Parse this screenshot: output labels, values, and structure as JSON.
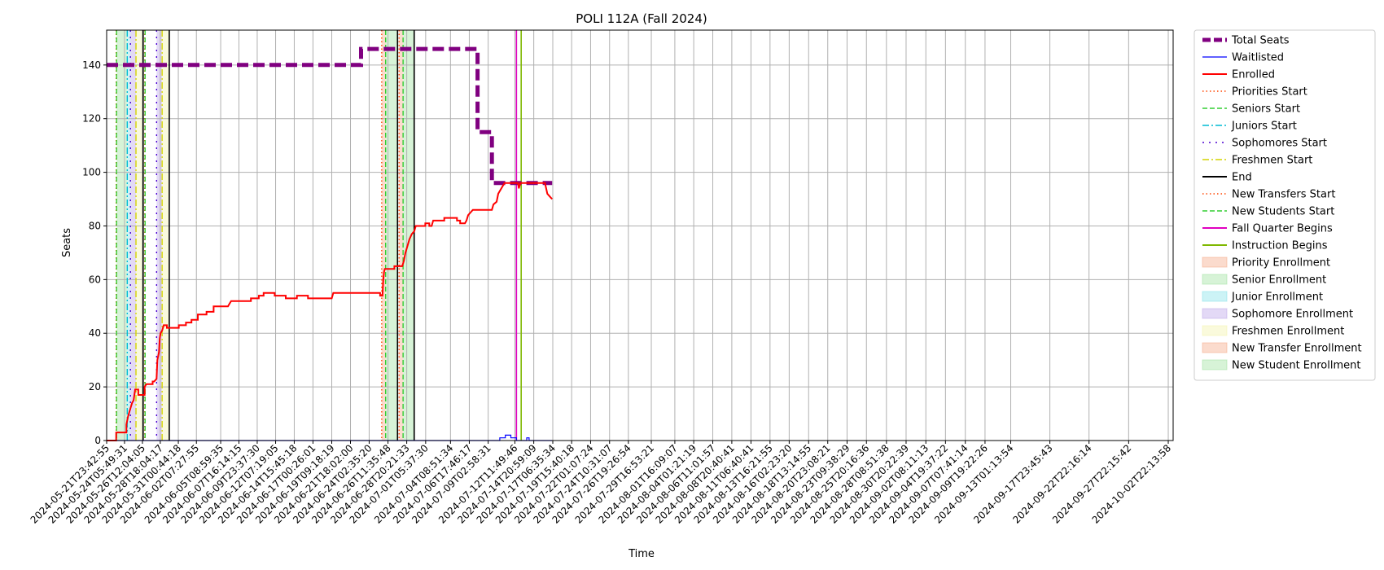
{
  "chart_data": {
    "type": "line",
    "title": "POLI 112A (Fall 2024)",
    "xlabel": "Time",
    "ylabel": "Seats",
    "ylim": [
      0,
      153
    ],
    "yticks": [
      0,
      20,
      40,
      60,
      80,
      100,
      120,
      140
    ],
    "grid": true,
    "legend_position": "outside-right",
    "x_start": "2024-05-21T23:42:55",
    "x_end": "2024-10-03T13:00:00",
    "xticks": [
      "2024-05-21T23:42:55",
      "2024-05-24T05:49:31",
      "2024-05-26T12:04:05",
      "2024-05-28T18:04:17",
      "2024-05-31T00:44:18",
      "2024-06-02T07:27:55",
      "2024-06-05T08:59:35",
      "2024-06-07T16:14:15",
      "2024-06-09T23:37:30",
      "2024-06-12T07:19:05",
      "2024-06-14T15:45:18",
      "2024-06-17T00:26:01",
      "2024-06-19T09:18:19",
      "2024-06-21T18:02:00",
      "2024-06-24T02:35:20",
      "2024-06-26T11:35:48",
      "2024-06-28T20:21:33",
      "2024-07-01T05:37:30",
      "2024-07-04T08:51:34",
      "2024-07-06T17:46:17",
      "2024-07-09T02:58:31",
      "2024-07-12T11:49:46",
      "2024-07-14T20:59:09",
      "2024-07-17T06:35:34",
      "2024-07-19T15:40:18",
      "2024-07-22T01:07:24",
      "2024-07-24T10:31:07",
      "2024-07-26T19:26:54",
      "2024-07-29T16:53:21",
      "2024-08-01T16:09:07",
      "2024-08-04T01:21:19",
      "2024-08-06T11:01:57",
      "2024-08-08T20:40:41",
      "2024-08-11T06:40:41",
      "2024-08-13T16:21:55",
      "2024-08-16T02:23:20",
      "2024-08-18T13:14:55",
      "2024-08-20T23:08:21",
      "2024-08-23T09:38:29",
      "2024-08-25T20:16:36",
      "2024-08-28T08:51:38",
      "2024-08-30T20:22:39",
      "2024-09-02T08:11:13",
      "2024-09-04T19:37:22",
      "2024-09-07T07:41:14",
      "2024-09-09T19:22:26",
      "2024-09-13T01:13:54",
      "2024-09-17T23:45:43",
      "2024-09-22T22:16:14",
      "2024-09-27T22:15:42",
      "2024-10-02T22:13:58"
    ],
    "series": [
      {
        "name": "Total Seats",
        "color": "#800080",
        "style": "dashed-thick",
        "points": [
          [
            0,
            140
          ],
          [
            32.1,
            140
          ],
          [
            32.1,
            146
          ],
          [
            46.8,
            146
          ],
          [
            46.8,
            115
          ],
          [
            48.6,
            115
          ],
          [
            48.6,
            96
          ],
          [
            56.2,
            96
          ]
        ]
      },
      {
        "name": "Waitlisted",
        "color": "#0000ff",
        "style": "solid-thin",
        "points": [
          [
            0,
            0
          ],
          [
            49.6,
            0
          ],
          [
            49.6,
            1
          ],
          [
            50.3,
            1
          ],
          [
            50.3,
            2
          ],
          [
            51.0,
            2
          ],
          [
            51.0,
            1
          ],
          [
            51.7,
            1
          ],
          [
            51.7,
            0
          ],
          [
            53.0,
            0
          ],
          [
            53.0,
            1
          ],
          [
            53.3,
            1
          ],
          [
            53.3,
            0
          ],
          [
            56.2,
            0
          ]
        ]
      },
      {
        "name": "Enrolled",
        "color": "#ff0000",
        "style": "solid",
        "points": [
          [
            0,
            0
          ],
          [
            1.2,
            0
          ],
          [
            1.2,
            3
          ],
          [
            2.5,
            3
          ],
          [
            2.5,
            6
          ],
          [
            2.7,
            9
          ],
          [
            3.0,
            12
          ],
          [
            3.2,
            14
          ],
          [
            3.4,
            15
          ],
          [
            3.6,
            19
          ],
          [
            4.0,
            19
          ],
          [
            4.0,
            17
          ],
          [
            4.8,
            17
          ],
          [
            4.8,
            20
          ],
          [
            5.0,
            21
          ],
          [
            5.8,
            21
          ],
          [
            5.8,
            22
          ],
          [
            6.0,
            22
          ],
          [
            6.3,
            23
          ],
          [
            6.4,
            30
          ],
          [
            6.6,
            33
          ],
          [
            6.7,
            38
          ],
          [
            6.8,
            40
          ],
          [
            7.0,
            41
          ],
          [
            7.2,
            43
          ],
          [
            7.6,
            43
          ],
          [
            7.6,
            42
          ],
          [
            9.1,
            42
          ],
          [
            9.1,
            43
          ],
          [
            10.0,
            43
          ],
          [
            10.0,
            44
          ],
          [
            10.7,
            44
          ],
          [
            10.7,
            45
          ],
          [
            11.5,
            45
          ],
          [
            11.5,
            47
          ],
          [
            12.6,
            47
          ],
          [
            12.6,
            48
          ],
          [
            13.5,
            48
          ],
          [
            13.5,
            50
          ],
          [
            15.3,
            50
          ],
          [
            15.5,
            51
          ],
          [
            15.7,
            52
          ],
          [
            18.2,
            52
          ],
          [
            18.2,
            53
          ],
          [
            19.2,
            53
          ],
          [
            19.2,
            54
          ],
          [
            19.8,
            54
          ],
          [
            19.8,
            55
          ],
          [
            21.2,
            55
          ],
          [
            21.2,
            54
          ],
          [
            22.6,
            54
          ],
          [
            22.6,
            53
          ],
          [
            24.0,
            53
          ],
          [
            24.0,
            54
          ],
          [
            25.4,
            54
          ],
          [
            25.4,
            53
          ],
          [
            28.4,
            53
          ],
          [
            28.6,
            55
          ],
          [
            32.0,
            55
          ],
          [
            34.5,
            55
          ],
          [
            34.5,
            54
          ],
          [
            34.8,
            54
          ],
          [
            34.9,
            60
          ],
          [
            35.0,
            63
          ],
          [
            35.1,
            64
          ],
          [
            36.3,
            64
          ],
          [
            36.3,
            65
          ],
          [
            37.3,
            65
          ],
          [
            37.5,
            67
          ],
          [
            37.7,
            70
          ],
          [
            37.9,
            72
          ],
          [
            38.2,
            75
          ],
          [
            38.5,
            77
          ],
          [
            38.8,
            78
          ],
          [
            39.0,
            80
          ],
          [
            40.2,
            80
          ],
          [
            40.2,
            81
          ],
          [
            40.7,
            81
          ],
          [
            40.7,
            80
          ],
          [
            41.0,
            80
          ],
          [
            41.2,
            82
          ],
          [
            42.6,
            82
          ],
          [
            42.6,
            83
          ],
          [
            44.2,
            83
          ],
          [
            44.2,
            82
          ],
          [
            44.6,
            82
          ],
          [
            44.6,
            81
          ],
          [
            45.2,
            81
          ],
          [
            45.4,
            82
          ],
          [
            45.6,
            84
          ],
          [
            45.9,
            85
          ],
          [
            46.2,
            86
          ],
          [
            48.6,
            86
          ],
          [
            48.8,
            88
          ],
          [
            49.2,
            89
          ],
          [
            49.4,
            92
          ],
          [
            49.8,
            94
          ],
          [
            50.2,
            96
          ],
          [
            51.9,
            96
          ],
          [
            52.0,
            94
          ],
          [
            52.2,
            96
          ],
          [
            55.3,
            96
          ],
          [
            55.6,
            92
          ],
          [
            55.9,
            91
          ],
          [
            56.2,
            90
          ]
        ]
      }
    ],
    "vertical_lines": [
      {
        "name": "Priorities Start",
        "color": "#ff4500",
        "style": "dotted",
        "x": [
          1.2,
          4.8,
          34.7,
          36.9
        ]
      },
      {
        "name": "Seniors Start",
        "color": "#32cd32",
        "style": "dashed",
        "x": [
          1.25,
          4.85,
          35.2,
          37.4
        ]
      },
      {
        "name": "Juniors Start",
        "color": "#00bcd4",
        "style": "dashdot",
        "x": [
          2.6
        ]
      },
      {
        "name": "Sophomores Start",
        "color": "#4b00d1",
        "style": "loosely-dotted",
        "x": [
          3.0,
          6.3
        ]
      },
      {
        "name": "Freshmen Start",
        "color": "#d4d400",
        "style": "dashdot",
        "x": [
          3.7,
          7.0
        ]
      },
      {
        "name": "End",
        "color": "#000000",
        "style": "solid",
        "x": [
          4.6,
          7.9,
          36.7,
          38.8
        ]
      },
      {
        "name": "New Transfers Start",
        "color": "#ff4500",
        "style": "dotted",
        "x": []
      },
      {
        "name": "New Students Start",
        "color": "#32cd32",
        "style": "dashed",
        "x": []
      },
      {
        "name": "Fall Quarter Begins",
        "color": "#e000c0",
        "style": "solid",
        "x": [
          51.7
        ]
      },
      {
        "name": "Instruction Begins",
        "color": "#7fb800",
        "style": "solid",
        "x": [
          52.3
        ]
      }
    ],
    "spans": [
      {
        "name": "Priority Enrollment",
        "color": "#f4a582",
        "ranges": [
          [
            34.7,
            35.2
          ]
        ]
      },
      {
        "name": "Senior Enrollment",
        "color": "#9be09b",
        "ranges": [
          [
            1.25,
            2.6
          ],
          [
            35.2,
            36.7
          ]
        ]
      },
      {
        "name": "Junior Enrollment",
        "color": "#7fe0e8",
        "ranges": [
          [
            2.6,
            3.0
          ]
        ]
      },
      {
        "name": "Sophomore Enrollment",
        "color": "#b9a1e8",
        "ranges": [
          [
            3.0,
            3.7
          ],
          [
            6.3,
            7.0
          ]
        ]
      },
      {
        "name": "Freshmen Enrollment",
        "color": "#f3f3a8",
        "ranges": [
          [
            3.7,
            4.6
          ],
          [
            7.0,
            7.9
          ]
        ]
      },
      {
        "name": "New Transfer Enrollment",
        "color": "#f4a582",
        "ranges": [
          [
            36.9,
            37.4
          ]
        ]
      },
      {
        "name": "New Student Enrollment",
        "color": "#9be09b",
        "ranges": [
          [
            37.4,
            38.8
          ]
        ]
      }
    ],
    "legend": [
      {
        "label": "Total Seats",
        "kind": "line",
        "color": "#800080",
        "style": "dashed-thick"
      },
      {
        "label": "Waitlisted",
        "kind": "line",
        "color": "#0000ff",
        "style": "solid-thin"
      },
      {
        "label": "Enrolled",
        "kind": "line",
        "color": "#ff0000",
        "style": "solid"
      },
      {
        "label": "Priorities Start",
        "kind": "line",
        "color": "#ff4500",
        "style": "dotted"
      },
      {
        "label": "Seniors Start",
        "kind": "line",
        "color": "#32cd32",
        "style": "dashed"
      },
      {
        "label": "Juniors Start",
        "kind": "line",
        "color": "#00bcd4",
        "style": "dashdot"
      },
      {
        "label": "Sophomores Start",
        "kind": "line",
        "color": "#4b00d1",
        "style": "loosely-dotted"
      },
      {
        "label": "Freshmen Start",
        "kind": "line",
        "color": "#d4d400",
        "style": "dashdot"
      },
      {
        "label": "End",
        "kind": "line",
        "color": "#000000",
        "style": "solid"
      },
      {
        "label": "New Transfers Start",
        "kind": "line",
        "color": "#ff4500",
        "style": "dotted"
      },
      {
        "label": "New Students Start",
        "kind": "line",
        "color": "#32cd32",
        "style": "dashed"
      },
      {
        "label": "Fall Quarter Begins",
        "kind": "line",
        "color": "#e000c0",
        "style": "solid"
      },
      {
        "label": "Instruction Begins",
        "kind": "line",
        "color": "#7fb800",
        "style": "solid"
      },
      {
        "label": "Priority Enrollment",
        "kind": "patch",
        "color": "#f4a582"
      },
      {
        "label": "Senior Enrollment",
        "kind": "patch",
        "color": "#9be09b"
      },
      {
        "label": "Junior Enrollment",
        "kind": "patch",
        "color": "#7fe0e8"
      },
      {
        "label": "Sophomore Enrollment",
        "kind": "patch",
        "color": "#b9a1e8"
      },
      {
        "label": "Freshmen Enrollment",
        "kind": "patch",
        "color": "#f3f3a8"
      },
      {
        "label": "New Transfer Enrollment",
        "kind": "patch",
        "color": "#f4a582"
      },
      {
        "label": "New Student Enrollment",
        "kind": "patch",
        "color": "#9be09b"
      }
    ]
  }
}
